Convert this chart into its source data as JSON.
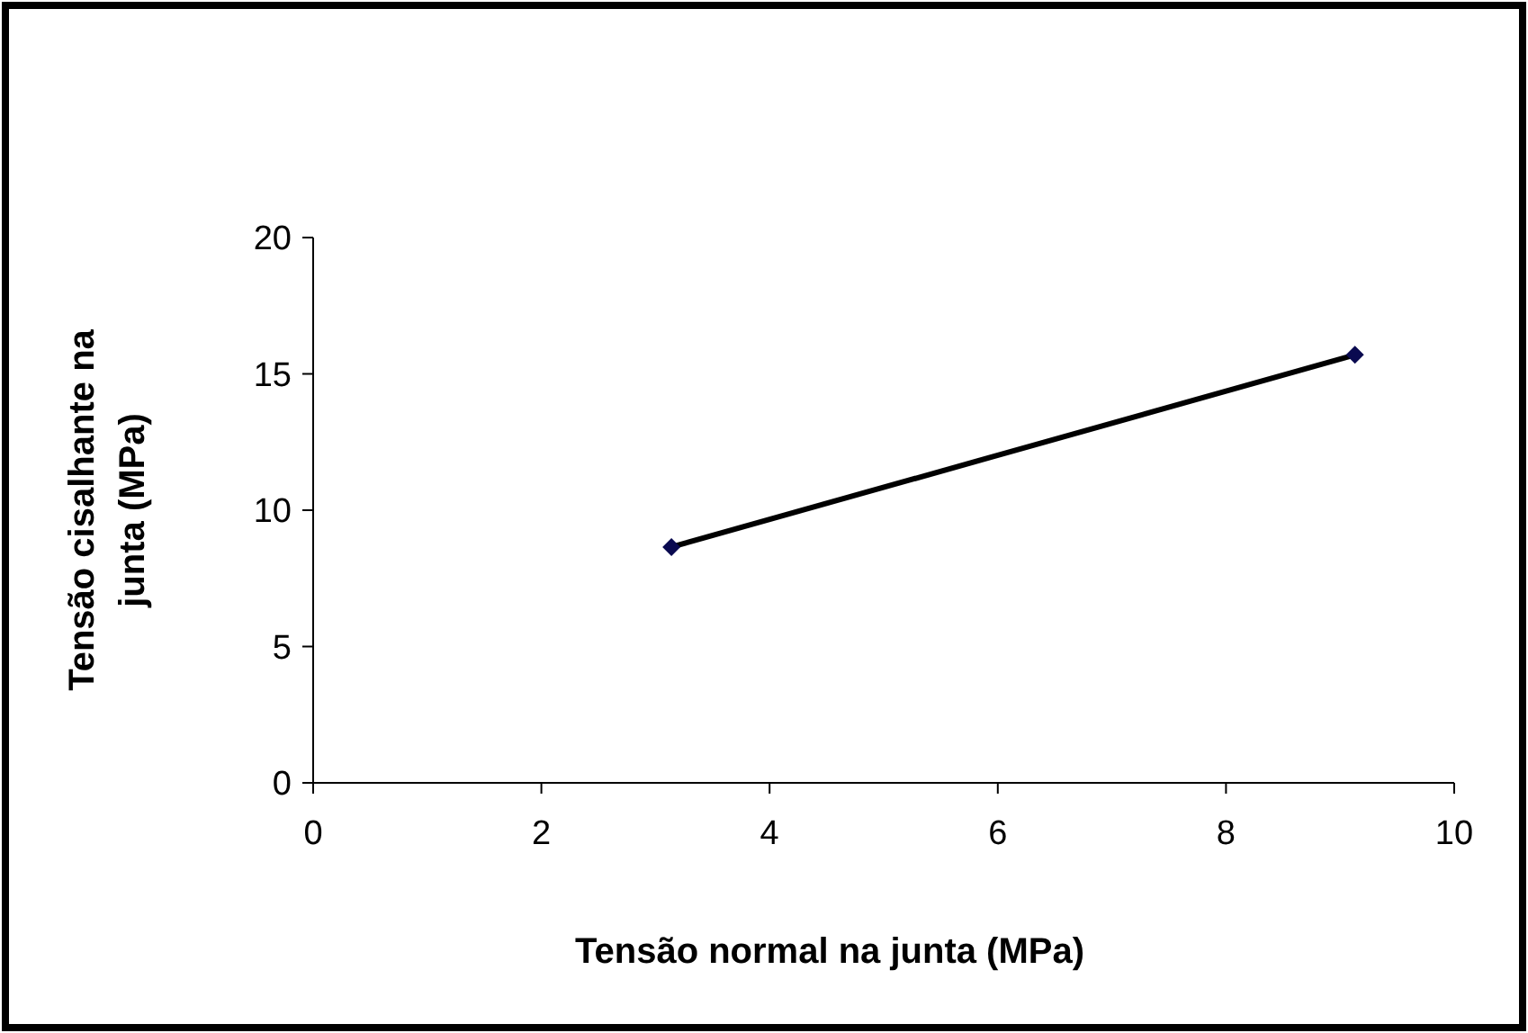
{
  "chart_data": {
    "type": "line",
    "xlabel": "Tensão normal na junta (MPa)",
    "ylabel": "Tensão cisalhante na junta (MPa)",
    "x": [
      3.14,
      9.13
    ],
    "series": [
      {
        "color": "#000000",
        "values": [
          8.65,
          15.7
        ]
      }
    ],
    "marker": "diamond",
    "line_style": "solid",
    "grid": false,
    "xlim": [
      0,
      10
    ],
    "xticks": [
      0,
      2,
      4,
      6,
      8,
      10
    ],
    "ylim": [
      0,
      20
    ],
    "yticks": [
      0,
      5,
      10,
      15,
      20
    ]
  }
}
